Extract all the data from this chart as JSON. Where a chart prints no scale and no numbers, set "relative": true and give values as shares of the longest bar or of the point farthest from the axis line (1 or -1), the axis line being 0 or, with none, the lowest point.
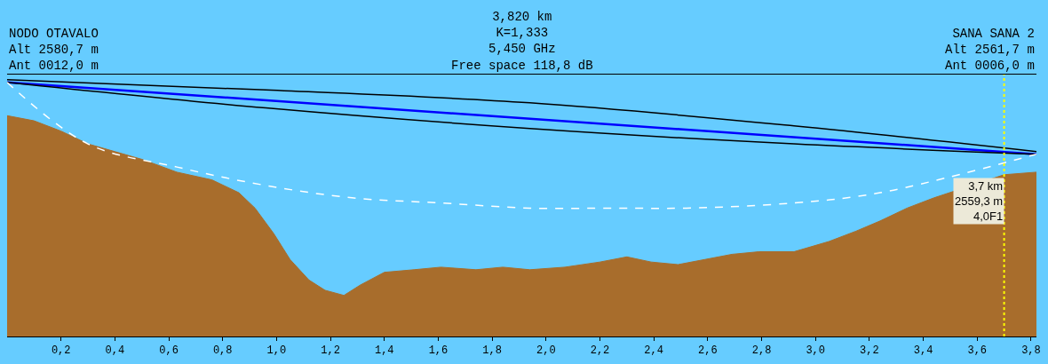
{
  "chart_data": {
    "type": "line",
    "relative": true,
    "annotations": [
      "NODO OTAVALO\nAlt 2580,7 m\nAnt 0012,0 m",
      "3,820 km\nK=1,333\n5,450 GHz\nFree space 118,8 dB",
      "SANA SANA 2\nAlt 2561,7 m\nAnt 0006,0 m",
      {
        "text": "3,7 km\n2559,3 m\n4,0F1",
        "x": 3.7,
        "y": 0.62
      }
    ],
    "xlim": [
      0,
      3.82
    ],
    "xticks": [
      {
        "value": 0.2,
        "label": "0,2"
      },
      {
        "value": 0.4,
        "label": "0,4"
      },
      {
        "value": 0.6,
        "label": "0,6"
      },
      {
        "value": 0.8,
        "label": "0,8"
      },
      {
        "value": 1.0,
        "label": "1,0"
      },
      {
        "value": 1.2,
        "label": "1,2"
      },
      {
        "value": 1.4,
        "label": "1,4"
      },
      {
        "value": 1.6,
        "label": "1,6"
      },
      {
        "value": 1.8,
        "label": "1,8"
      },
      {
        "value": 2.0,
        "label": "2,0"
      },
      {
        "value": 2.2,
        "label": "2,2"
      },
      {
        "value": 2.4,
        "label": "2,4"
      },
      {
        "value": 2.6,
        "label": "2,6"
      },
      {
        "value": 2.8,
        "label": "2,8"
      },
      {
        "value": 3.0,
        "label": "3,0"
      },
      {
        "value": 3.2,
        "label": "3,2"
      },
      {
        "value": 3.4,
        "label": "3,4"
      },
      {
        "value": 3.6,
        "label": "3,6"
      },
      {
        "value": 3.8,
        "label": "3,8"
      }
    ],
    "ref_lines": [
      {
        "axis": "x",
        "value": 3.7,
        "color": "#ffff00",
        "line_style": "dotted"
      }
    ],
    "series": [
      {
        "type": "area",
        "color": "#a86d2c",
        "x": [
          0,
          0.1,
          0.2,
          0.3,
          0.4,
          0.5,
          0.63,
          0.76,
          0.86,
          0.92,
          0.99,
          1.05,
          1.12,
          1.18,
          1.25,
          1.31,
          1.4,
          1.51,
          1.61,
          1.74,
          1.84,
          1.94,
          2.07,
          2.2,
          2.3,
          2.39,
          2.49,
          2.59,
          2.69,
          2.79,
          2.92,
          3.05,
          3.15,
          3.24,
          3.34,
          3.44,
          3.7,
          3.82
        ],
        "values": [
          0.86,
          0.84,
          0.8,
          0.75,
          0.72,
          0.69,
          0.64,
          0.61,
          0.56,
          0.5,
          0.4,
          0.3,
          0.22,
          0.18,
          0.16,
          0.2,
          0.25,
          0.26,
          0.27,
          0.26,
          0.27,
          0.26,
          0.27,
          0.29,
          0.31,
          0.29,
          0.28,
          0.3,
          0.32,
          0.33,
          0.33,
          0.37,
          0.41,
          0.45,
          0.5,
          0.54,
          0.63,
          0.64
        ]
      },
      {
        "color": "#000000",
        "line_style": "solid",
        "x": [
          0,
          0.96,
          1.94,
          2.92,
          3.82
        ],
        "values": [
          1.0,
          0.96,
          0.91,
          0.82,
          0.72
        ]
      },
      {
        "color": "#0000ff",
        "line_style": "solid",
        "x": [
          0,
          3.82
        ],
        "values": [
          0.99,
          0.71
        ]
      },
      {
        "color": "#000000",
        "line_style": "solid",
        "x": [
          0,
          0.96,
          1.94,
          2.92,
          3.82
        ],
        "values": [
          0.99,
          0.89,
          0.81,
          0.75,
          0.71
        ]
      },
      {
        "color": "#ffffff",
        "line_style": "dashed",
        "x": [
          0,
          0.3,
          0.63,
          0.95,
          1.28,
          1.61,
          1.94,
          2.26,
          2.52,
          2.92,
          3.24,
          3.82
        ],
        "values": [
          0.99,
          0.75,
          0.66,
          0.59,
          0.54,
          0.52,
          0.5,
          0.5,
          0.5,
          0.52,
          0.56,
          0.71
        ]
      }
    ]
  }
}
